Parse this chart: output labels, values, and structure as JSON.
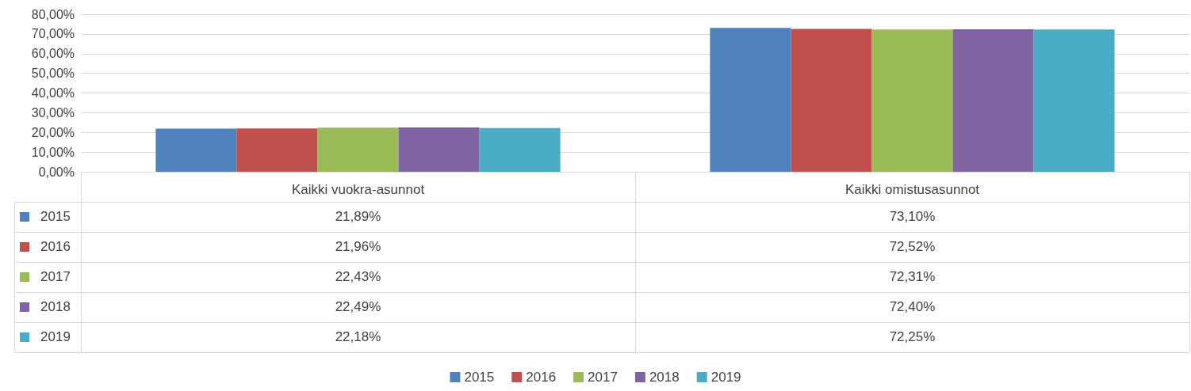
{
  "chart_data": {
    "type": "bar",
    "categories": [
      "Kaikki vuokra-asunnot",
      "Kaikki omistusasunnot"
    ],
    "series": [
      {
        "name": "2015",
        "color": "#4f81bd",
        "values": [
          21.89,
          73.1
        ],
        "value_labels": [
          "21,89%",
          "73,10%"
        ]
      },
      {
        "name": "2016",
        "color": "#c0504d",
        "values": [
          21.96,
          72.52
        ],
        "value_labels": [
          "21,96%",
          "72,52%"
        ]
      },
      {
        "name": "2017",
        "color": "#9bbb59",
        "values": [
          22.43,
          72.31
        ],
        "value_labels": [
          "22,43%",
          "72,31%"
        ]
      },
      {
        "name": "2018",
        "color": "#8064a2",
        "values": [
          22.49,
          72.4
        ],
        "value_labels": [
          "22,49%",
          "72,40%"
        ]
      },
      {
        "name": "2019",
        "color": "#4bacc6",
        "values": [
          22.18,
          72.25
        ],
        "value_labels": [
          "22,18%",
          "72,25%"
        ]
      }
    ],
    "ylim": [
      0,
      80
    ],
    "yticks": [
      {
        "value": 0,
        "label": "0,00%"
      },
      {
        "value": 10,
        "label": "10,00%"
      },
      {
        "value": 20,
        "label": "20,00%"
      },
      {
        "value": 30,
        "label": "30,00%"
      },
      {
        "value": 40,
        "label": "40,00%"
      },
      {
        "value": 50,
        "label": "50,00%"
      },
      {
        "value": 60,
        "label": "60,00%"
      },
      {
        "value": 70,
        "label": "70,00%"
      },
      {
        "value": 80,
        "label": "80,00%"
      }
    ],
    "grid": "y",
    "legend": "bottom"
  }
}
